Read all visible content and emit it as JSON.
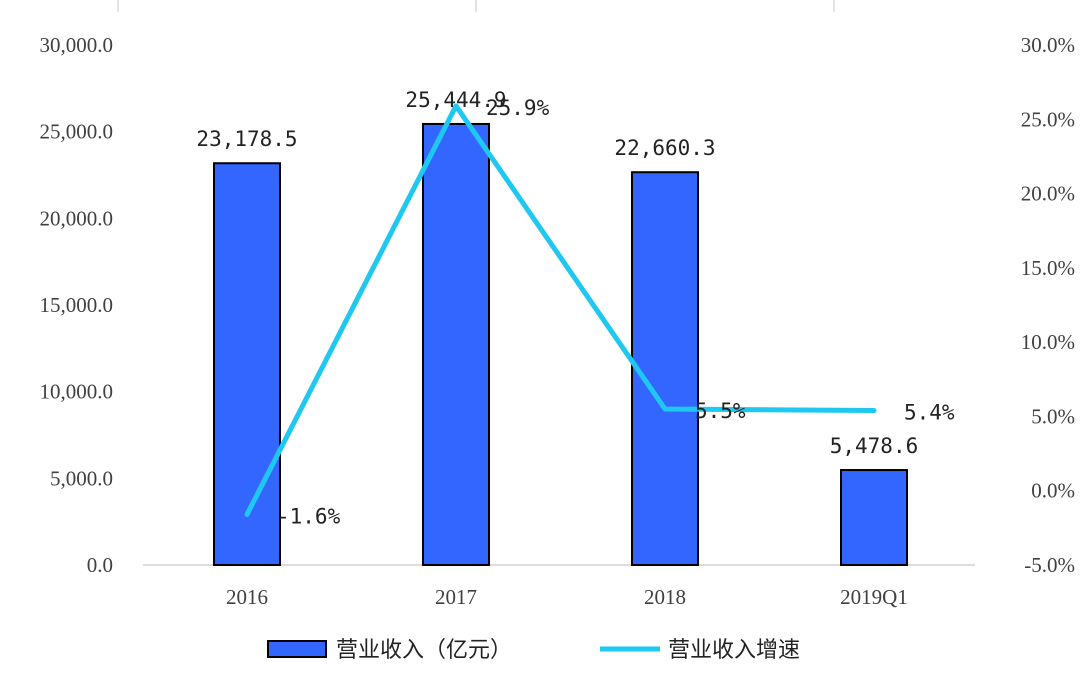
{
  "chart_data": {
    "type": "bar",
    "categories": [
      "2016",
      "2017",
      "2018",
      "2019Q1"
    ],
    "series": [
      {
        "name": "营业收入（亿元）",
        "type": "bar",
        "axis": "left",
        "values": [
          23178.5,
          25444.9,
          22660.3,
          5478.6
        ],
        "labels": [
          "23,178.5",
          "25,444.9",
          "22,660.3",
          "5,478.6"
        ],
        "color": "#3366FF"
      },
      {
        "name": "营业收入增速",
        "type": "line",
        "axis": "right",
        "values": [
          -1.6,
          25.9,
          5.5,
          5.4
        ],
        "labels": [
          "-1.6%",
          "25.9%",
          "5.5%",
          "5.4%"
        ],
        "color": "#1EC8F0"
      }
    ],
    "y_left": {
      "range": [
        0,
        30000
      ],
      "ticks": [
        "0.0",
        "5,000.0",
        "10,000.0",
        "15,000.0",
        "20,000.0",
        "25,000.0",
        "30,000.0"
      ]
    },
    "y_right": {
      "range": [
        -5,
        30
      ],
      "ticks": [
        "-5.0%",
        "0.0%",
        "5.0%",
        "10.0%",
        "15.0%",
        "20.0%",
        "25.0%",
        "30.0%"
      ]
    },
    "grid": false,
    "legend_position": "bottom",
    "title": "",
    "xlabel": "",
    "ylabel": ""
  }
}
